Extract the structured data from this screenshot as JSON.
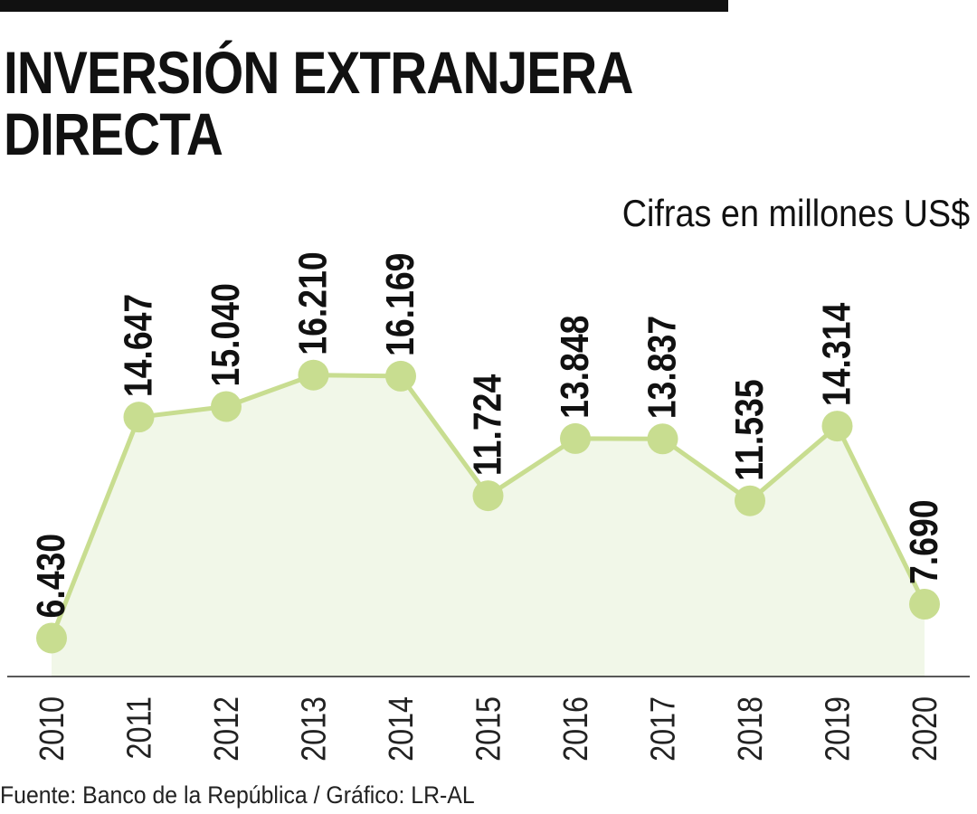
{
  "chart_data": {
    "type": "line",
    "title": "INVERSIÓN EXTRANJERA DIRECTA",
    "subtitle": "Cifras en millones US$",
    "source": "Fuente: Banco de la República / Gráfico: LR-AL",
    "categories": [
      "2010",
      "2011",
      "2012",
      "2013",
      "2014",
      "2015",
      "2016",
      "2017",
      "2018",
      "2019",
      "2020"
    ],
    "values": [
      6430,
      14647,
      15040,
      16210,
      16169,
      11724,
      13848,
      13837,
      11535,
      14314,
      7690
    ],
    "value_labels": [
      "6.430",
      "14.647",
      "15.040",
      "16.210",
      "16.169",
      "11.724",
      "13.848",
      "13.837",
      "11.535",
      "14.314",
      "7.690"
    ],
    "color": "#c8dd90",
    "area_color": "#f1f7e8",
    "ylim": [
      5000,
      20000
    ]
  }
}
